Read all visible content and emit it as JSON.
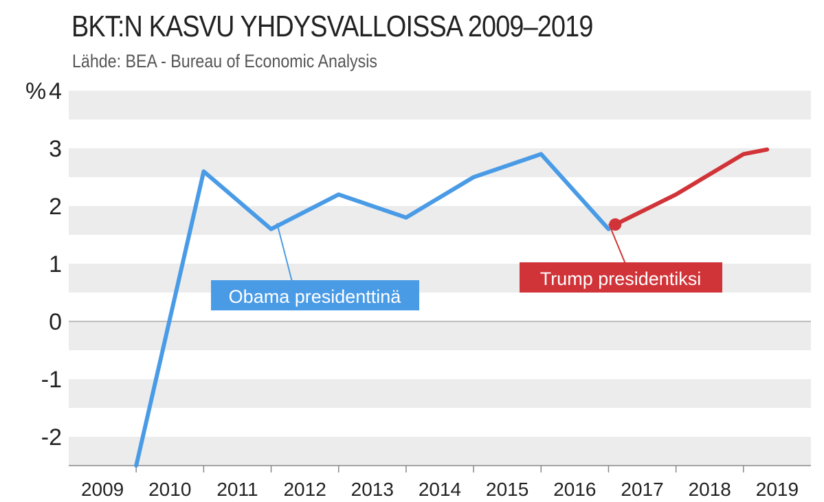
{
  "chart_data": {
    "type": "line",
    "title": "BKT:N KASVU YHDYSVALLOISSA 2009–2019",
    "subtitle": "Lähde: BEA - Bureau of Economic Analysis",
    "y_unit_label": "%",
    "ylim": [
      -2.5,
      4
    ],
    "yticks": [
      "4",
      "3",
      "2",
      "1",
      "0",
      "-1",
      "-2"
    ],
    "ytick_values": [
      4,
      3,
      2,
      1,
      0,
      -1,
      -2
    ],
    "x_categories": [
      "2009",
      "2010",
      "2011",
      "2012",
      "2013",
      "2014",
      "2015",
      "2016",
      "2017",
      "2018",
      "2019"
    ],
    "grid": "horizontal-bands",
    "series": [
      {
        "name": "Obama presidenttinä",
        "color": "#4a9be6",
        "x": [
          2009.5,
          2010.5,
          2011.5,
          2012.5,
          2013.5,
          2014.5,
          2015.5,
          2016.5
        ],
        "values": [
          -2.5,
          2.6,
          1.6,
          2.2,
          1.8,
          2.5,
          2.9,
          1.6
        ]
      },
      {
        "name": "Trump presidentiksi",
        "color": "#d13438",
        "x": [
          2016.6,
          2017.5,
          2018.5,
          2018.85
        ],
        "values": [
          1.68,
          2.2,
          2.9,
          2.98
        ]
      }
    ],
    "annotations": [
      {
        "text": "Obama presidenttinä",
        "color": "#4a9be6"
      },
      {
        "text": "Trump presidentiksi",
        "color": "#d13438"
      }
    ]
  }
}
